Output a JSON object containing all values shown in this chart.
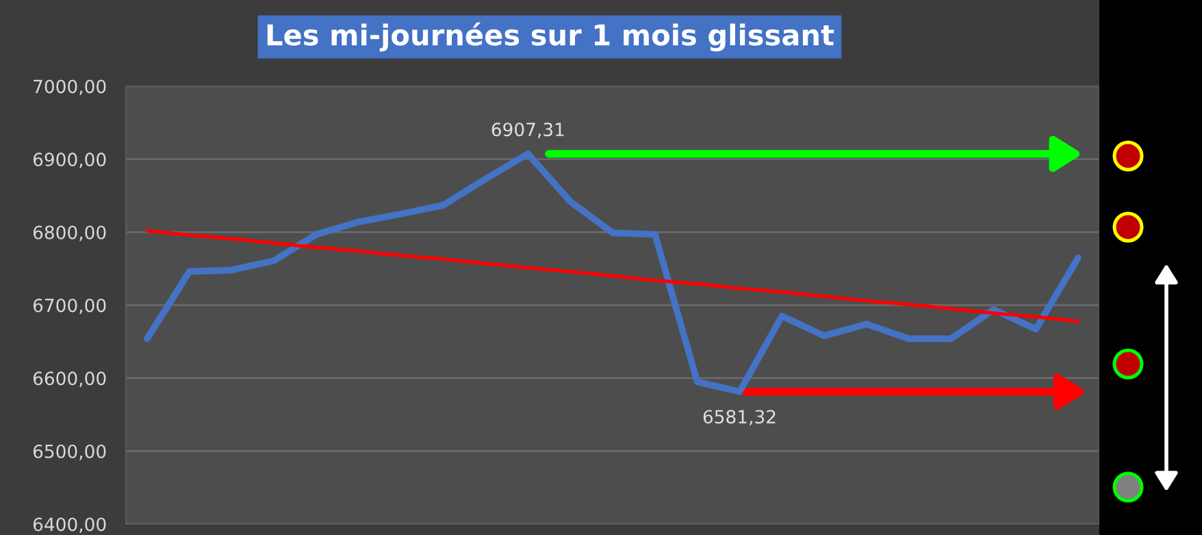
{
  "chart_data": {
    "type": "line",
    "title": "Les mi-journées sur 1 mois glissant",
    "categories": [
      null,
      null,
      null,
      null,
      null,
      null,
      null,
      null,
      null,
      null,
      null,
      null,
      null,
      null,
      null,
      null,
      null,
      null,
      null,
      null,
      null,
      null,
      null
    ],
    "series": [
      {
        "color": "#4472c4",
        "values": [
          6654,
          6746,
          6748,
          6761,
          6797,
          6814,
          6825,
          6837,
          6873,
          6907.31,
          6842,
          6799,
          6797,
          6595,
          6581.32,
          6685,
          6658,
          6674,
          6654,
          6654,
          6694,
          6667,
          6765
        ]
      },
      {
        "type": "line",
        "color": "#ff0000",
        "values": [
          6802,
          6796,
          6791,
          6785,
          6779,
          6774,
          6768,
          6763,
          6757,
          6751,
          6746,
          6740,
          6734,
          6729,
          6723,
          6718,
          6712,
          6706,
          6701,
          6695,
          6689,
          6684,
          6678
        ]
      }
    ],
    "ylim": [
      6400,
      7000
    ],
    "yticks": [
      {
        "value": 6400,
        "label": "6400,00"
      },
      {
        "value": 6500,
        "label": "6500,00"
      },
      {
        "value": 6600,
        "label": "6600,00"
      },
      {
        "value": 6700,
        "label": "6700,00"
      },
      {
        "value": 6800,
        "label": "6800,00"
      },
      {
        "value": 6900,
        "label": "6900,00"
      },
      {
        "value": 7000,
        "label": "7000,00"
      }
    ],
    "tick_labels": "y",
    "grid": "y",
    "legend": false,
    "marker": "none",
    "line_style": "solid",
    "annotations": [
      {
        "text": "6907,31",
        "y": 6907.31
      },
      {
        "text": "6581,32",
        "y": 6581.32
      }
    ]
  }
}
